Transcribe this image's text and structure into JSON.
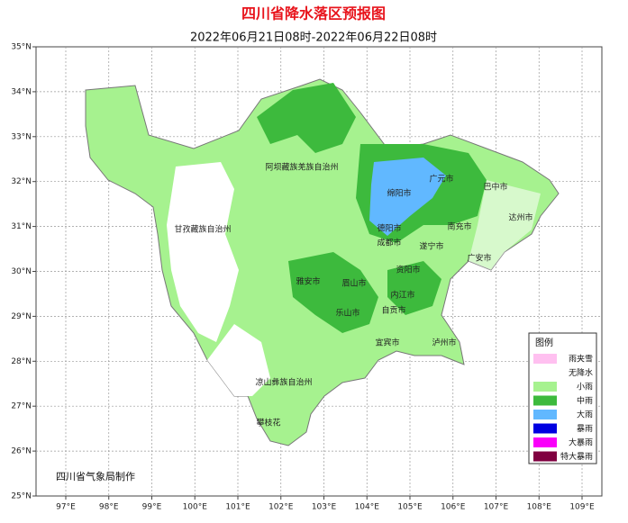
{
  "header": {
    "title": "四川省降水落区预报图",
    "subtitle": "2022年06月21日08时-2022年06月22日08时"
  },
  "axes": {
    "lat_labels": [
      "35°N",
      "34°N",
      "33°N",
      "32°N",
      "31°N",
      "30°N",
      "29°N",
      "28°N",
      "27°N",
      "26°N",
      "25°N"
    ],
    "lon_labels": [
      "97°E",
      "98°E",
      "99°E",
      "100°E",
      "101°E",
      "102°E",
      "103°E",
      "104°E",
      "105°E",
      "106°E",
      "107°E",
      "108°E",
      "109°E"
    ]
  },
  "regions": [
    "阿坝藏族羌族自治州",
    "甘孜藏族自治州",
    "凉山彝族自治州",
    "攀枝花",
    "广元市",
    "巴中市",
    "绵阳市",
    "德阳市",
    "南充市",
    "达州市",
    "遂宁市",
    "广安市",
    "成都市",
    "资阳市",
    "雅安市",
    "眉山市",
    "内江市",
    "乐山市",
    "自贡市",
    "宜宾市",
    "泸州市"
  ],
  "legend": {
    "title": "图例",
    "items": [
      {
        "label": "雨夹雪",
        "color": "#ffc0f0"
      },
      {
        "label": "无降水",
        "color": "#ffffff"
      },
      {
        "label": "小雨",
        "color": "#a6f28f"
      },
      {
        "label": "中雨",
        "color": "#3dba3d"
      },
      {
        "label": "大雨",
        "color": "#61b8ff"
      },
      {
        "label": "暴雨",
        "color": "#0000e1"
      },
      {
        "label": "大暴雨",
        "color": "#fa00fa"
      },
      {
        "label": "特大暴雨",
        "color": "#800040"
      }
    ]
  },
  "credit": "四川省气象局制作"
}
